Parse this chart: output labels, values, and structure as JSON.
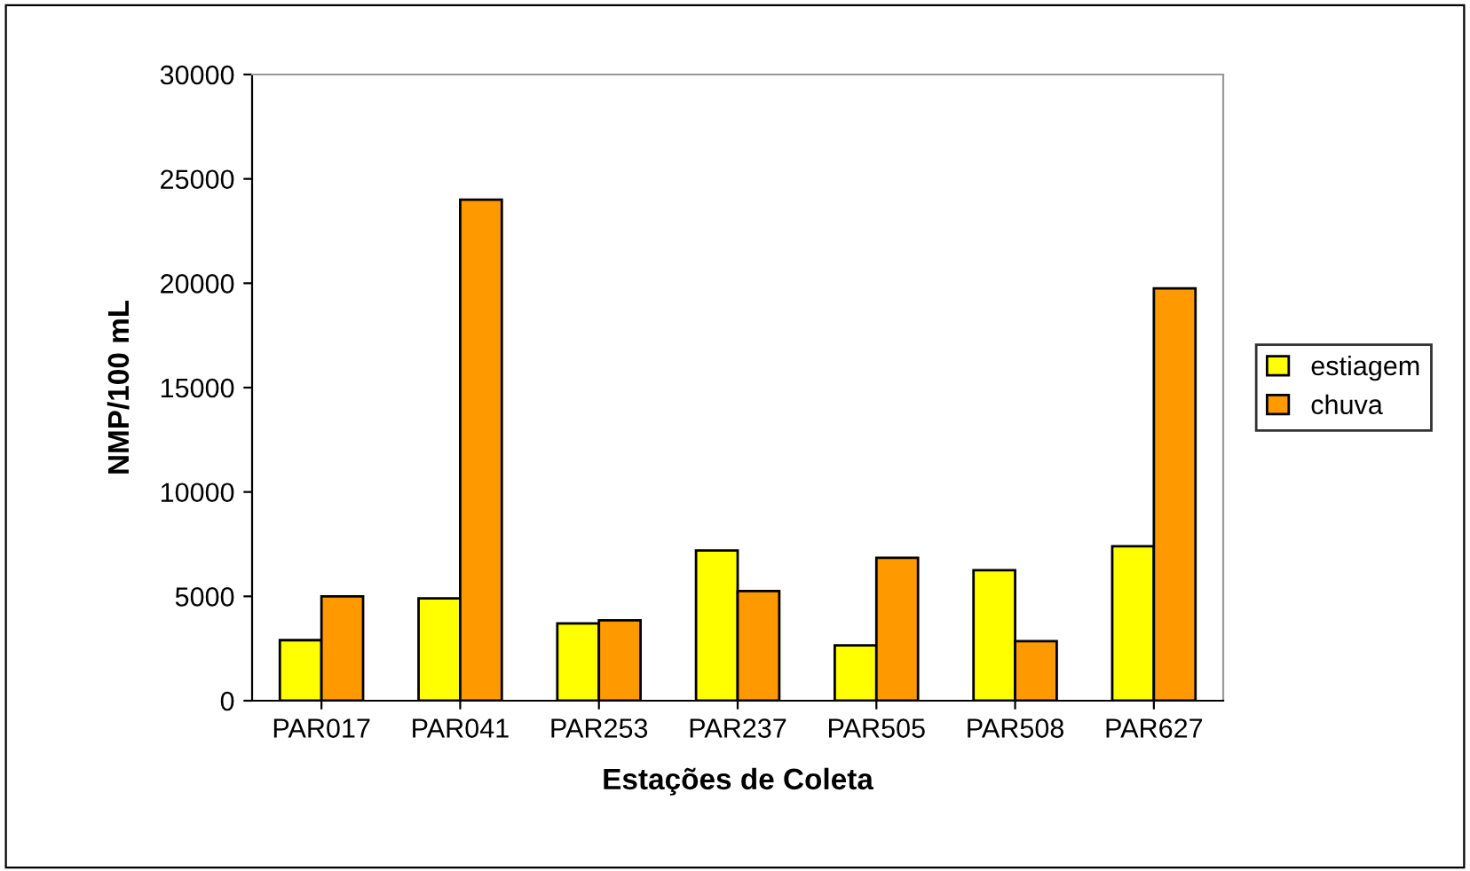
{
  "chart_data": {
    "type": "bar",
    "xlabel": "Estações de Coleta",
    "ylabel": "NMP/100 mL",
    "categories": [
      "PAR017",
      "PAR041",
      "PAR253",
      "PAR237",
      "PAR505",
      "PAR508",
      "PAR627"
    ],
    "series": [
      {
        "name": "estiagem",
        "color": "#ffff00",
        "values": [
          2900,
          4900,
          3700,
          7200,
          2650,
          6250,
          7400
        ]
      },
      {
        "name": "chuva",
        "color": "#ff9900",
        "values": [
          5000,
          24000,
          3850,
          5250,
          6850,
          2850,
          19750
        ]
      }
    ],
    "ylim": [
      0,
      30000
    ],
    "yticks": [
      0,
      5000,
      10000,
      15000,
      20000,
      25000,
      30000
    ],
    "grid": false,
    "legend": "right"
  }
}
